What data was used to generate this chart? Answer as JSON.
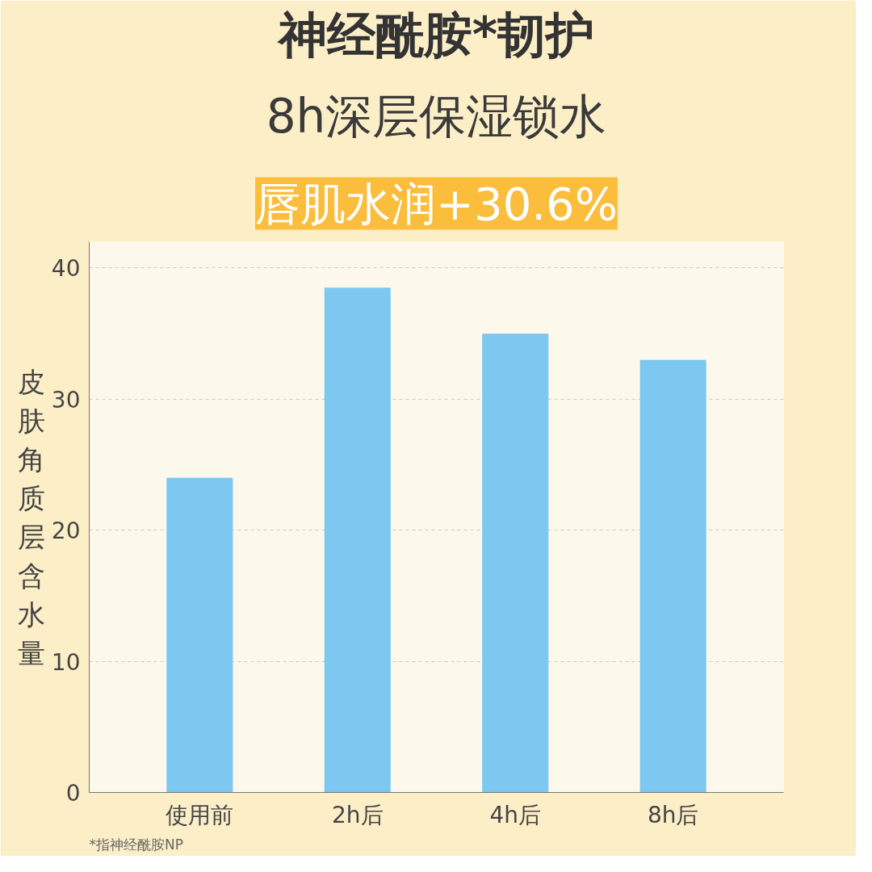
{
  "chart_data": {
    "type": "bar",
    "title": "神经酰胺*韧护",
    "subtitle": "8h深层保湿锁水",
    "annotations": [
      "唇肌水润+30.6%",
      "*指神经酰胺NP"
    ],
    "ylabel": "皮肤角质层含水量",
    "categories": [
      "使用前",
      "2h后",
      "4h后",
      "8h后"
    ],
    "values": [
      24,
      38.5,
      35,
      33
    ],
    "color": "#7cc8f0",
    "ylim": [
      0,
      42
    ],
    "yticks": [
      0,
      10,
      20,
      30,
      40
    ],
    "grid": "y"
  }
}
